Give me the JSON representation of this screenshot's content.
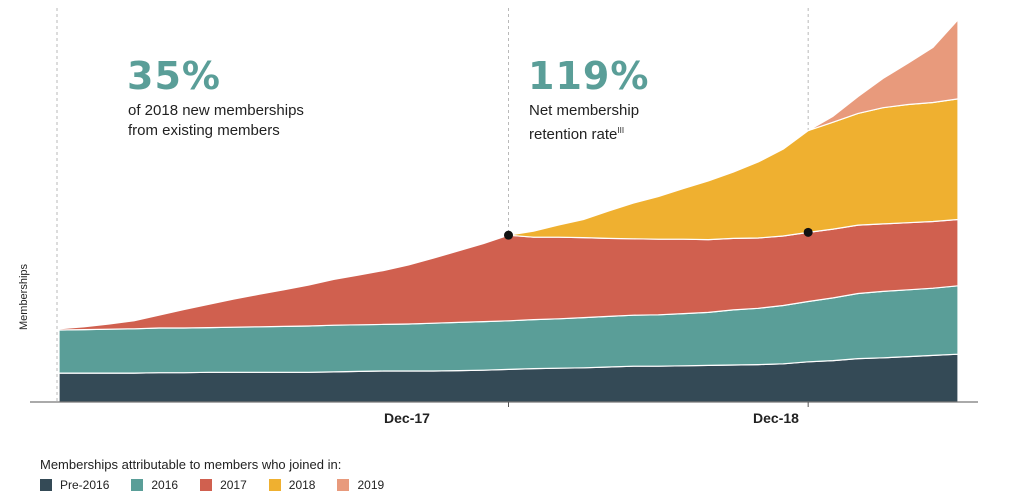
{
  "stats": [
    {
      "value": "35%",
      "caption_line1": "of 2018 new memberships",
      "caption_line2": "from existing members",
      "footnote": ""
    },
    {
      "value": "119%",
      "caption_line1": "Net membership",
      "caption_line2": "retention rate",
      "footnote": "III"
    }
  ],
  "chart_data": {
    "type": "area",
    "stacked": true,
    "title": "",
    "xlabel": "",
    "ylabel": "Memberships",
    "x_ticks": [
      "Dec-17",
      "Dec-18"
    ],
    "y_range": [
      0,
      100
    ],
    "y_ticks_visible": false,
    "grid": false,
    "legend_title": "Memberships attributable to members who joined in:",
    "legend_position": "bottom-left",
    "x": [
      "Jun-16",
      "Jul-16",
      "Aug-16",
      "Sep-16",
      "Oct-16",
      "Nov-16",
      "Dec-16",
      "Jan-17",
      "Feb-17",
      "Mar-17",
      "Apr-17",
      "May-17",
      "Jun-17",
      "Jul-17",
      "Aug-17",
      "Sep-17",
      "Oct-17",
      "Nov-17",
      "Dec-17",
      "Jan-18",
      "Feb-18",
      "Mar-18",
      "Apr-18",
      "May-18",
      "Jun-18",
      "Jul-18",
      "Aug-18",
      "Sep-18",
      "Oct-18",
      "Nov-18",
      "Dec-18",
      "Jan-19",
      "Feb-19",
      "Mar-19",
      "Apr-19",
      "May-19",
      "Jun-19"
    ],
    "series": [
      {
        "name": "Pre-2016",
        "color": "#344a56",
        "values": [
          7.2,
          7.2,
          7.2,
          7.2,
          7.3,
          7.3,
          7.4,
          7.4,
          7.4,
          7.4,
          7.4,
          7.5,
          7.6,
          7.7,
          7.7,
          7.7,
          7.8,
          7.9,
          8.1,
          8.3,
          8.4,
          8.5,
          8.7,
          8.9,
          8.9,
          9.0,
          9.1,
          9.2,
          9.3,
          9.5,
          10.0,
          10.3,
          10.8,
          11.0,
          11.3,
          11.6,
          11.9
        ]
      },
      {
        "name": "2016",
        "color": "#5a9e98",
        "values": [
          10.7,
          10.8,
          10.9,
          11.0,
          11.1,
          11.1,
          11.1,
          11.2,
          11.3,
          11.4,
          11.5,
          11.6,
          11.6,
          11.6,
          11.7,
          11.9,
          12.0,
          12.1,
          12.1,
          12.2,
          12.3,
          12.5,
          12.6,
          12.7,
          12.8,
          13.0,
          13.2,
          13.7,
          14.0,
          14.5,
          15.0,
          15.6,
          16.2,
          16.5,
          16.6,
          16.7,
          17.0
        ]
      },
      {
        "name": "2017",
        "color": "#d0604f",
        "values": [
          0.3,
          0.7,
          1.3,
          2.0,
          3.2,
          4.6,
          5.8,
          7.0,
          8.1,
          9.1,
          10.2,
          11.4,
          12.4,
          13.4,
          14.7,
          16.2,
          17.8,
          19.4,
          21.3,
          20.5,
          20.3,
          19.9,
          19.4,
          19.0,
          18.8,
          18.5,
          18.1,
          17.8,
          17.5,
          17.3,
          17.2,
          17.1,
          17.0,
          16.8,
          16.7,
          16.6,
          16.5
        ]
      },
      {
        "name": "2018",
        "color": "#efb030",
        "values": [
          0,
          0,
          0,
          0,
          0,
          0,
          0,
          0,
          0,
          0,
          0,
          0,
          0,
          0,
          0,
          0,
          0,
          0,
          0,
          1.5,
          3.0,
          4.5,
          6.8,
          8.9,
          10.6,
          12.6,
          14.6,
          16.5,
          18.9,
          21.6,
          25.3,
          26.6,
          27.8,
          28.9,
          29.4,
          29.6,
          30.0
        ]
      },
      {
        "name": "2019",
        "color": "#e89a7c",
        "values": [
          0,
          0,
          0,
          0,
          0,
          0,
          0,
          0,
          0,
          0,
          0,
          0,
          0,
          0,
          0,
          0,
          0,
          0,
          0,
          0,
          0,
          0,
          0,
          0,
          0,
          0,
          0,
          0,
          0,
          0,
          0,
          1.5,
          4.2,
          7.3,
          10.3,
          13.7,
          19.7
        ]
      }
    ],
    "markers": [
      {
        "x": "Dec-17",
        "y": 41.5
      },
      {
        "x": "Dec-18",
        "y": 42.2
      }
    ]
  }
}
